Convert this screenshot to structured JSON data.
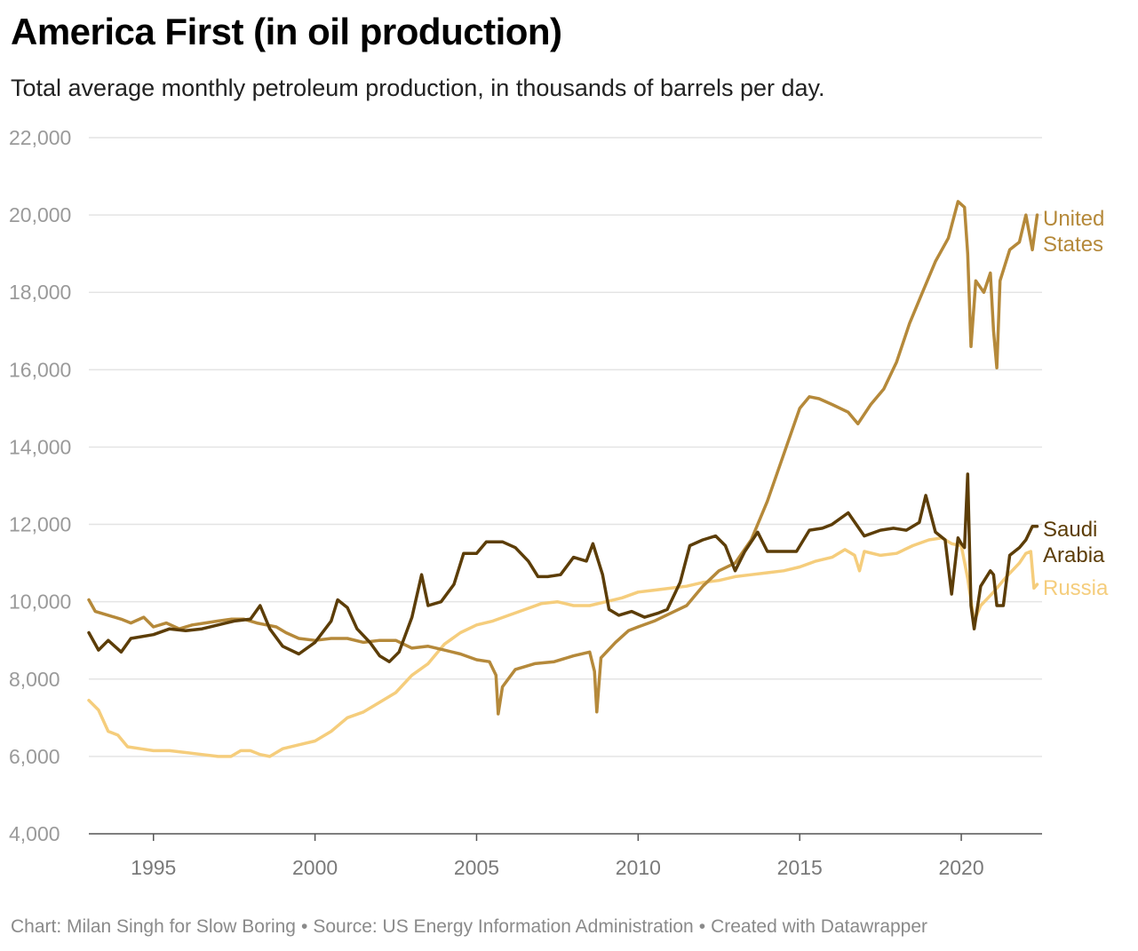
{
  "title": "America First (in oil production)",
  "subtitle": "Total average monthly petroleum production, in thousands of barrels per day.",
  "footer": {
    "chart_credit": "Chart: Milan Singh for Slow Boring",
    "source": "Source: US Energy Information Administration",
    "created": "Created with Datawrapper",
    "separator": "•"
  },
  "colors": {
    "united_states": "#b5893a",
    "saudi_arabia": "#5c3d07",
    "russia": "#f5cd7c",
    "gridline": "#e4e4e4",
    "axis": "#555555",
    "tick_label": "#9a9a9a"
  },
  "chart_data": {
    "type": "line",
    "title": "America First (in oil production)",
    "xlabel": "",
    "ylabel": "",
    "xlim": [
      1993.0,
      2022.5
    ],
    "ylim": [
      4000,
      22000
    ],
    "y_ticks": [
      4000,
      6000,
      8000,
      10000,
      12000,
      14000,
      16000,
      18000,
      20000,
      22000
    ],
    "y_tick_labels": [
      "4,000",
      "6,000",
      "8,000",
      "10,000",
      "12,000",
      "14,000",
      "16,000",
      "18,000",
      "20,000",
      "22,000"
    ],
    "x_ticks": [
      1995,
      2000,
      2005,
      2010,
      2015,
      2020
    ],
    "x_tick_labels": [
      "1995",
      "2000",
      "2005",
      "2010",
      "2015",
      "2020"
    ],
    "grid": true,
    "series": [
      {
        "name": "United States",
        "label_lines": [
          "United",
          "States"
        ],
        "color": "#b5893a",
        "points": [
          [
            1993.0,
            10050
          ],
          [
            1993.2,
            9750
          ],
          [
            1993.6,
            9650
          ],
          [
            1994.0,
            9550
          ],
          [
            1994.3,
            9450
          ],
          [
            1994.7,
            9600
          ],
          [
            1995.0,
            9350
          ],
          [
            1995.4,
            9450
          ],
          [
            1995.8,
            9300
          ],
          [
            1996.2,
            9400
          ],
          [
            1996.6,
            9450
          ],
          [
            1997.0,
            9500
          ],
          [
            1997.4,
            9550
          ],
          [
            1997.8,
            9550
          ],
          [
            1998.2,
            9450
          ],
          [
            1998.5,
            9400
          ],
          [
            1998.8,
            9350
          ],
          [
            1999.1,
            9200
          ],
          [
            1999.5,
            9050
          ],
          [
            2000.0,
            9000
          ],
          [
            2000.5,
            9050
          ],
          [
            2001.0,
            9050
          ],
          [
            2001.5,
            8950
          ],
          [
            2002.0,
            9000
          ],
          [
            2002.5,
            9000
          ],
          [
            2003.0,
            8800
          ],
          [
            2003.5,
            8850
          ],
          [
            2004.0,
            8750
          ],
          [
            2004.5,
            8650
          ],
          [
            2005.0,
            8500
          ],
          [
            2005.4,
            8450
          ],
          [
            2005.6,
            8100
          ],
          [
            2005.67,
            7100
          ],
          [
            2005.8,
            7800
          ],
          [
            2006.2,
            8250
          ],
          [
            2006.8,
            8400
          ],
          [
            2007.4,
            8450
          ],
          [
            2008.0,
            8600
          ],
          [
            2008.5,
            8700
          ],
          [
            2008.65,
            8200
          ],
          [
            2008.72,
            7150
          ],
          [
            2008.85,
            8550
          ],
          [
            2009.3,
            8950
          ],
          [
            2009.7,
            9250
          ],
          [
            2010.0,
            9350
          ],
          [
            2010.5,
            9500
          ],
          [
            2011.0,
            9700
          ],
          [
            2011.5,
            9900
          ],
          [
            2012.0,
            10400
          ],
          [
            2012.5,
            10800
          ],
          [
            2013.0,
            11000
          ],
          [
            2013.5,
            11600
          ],
          [
            2014.0,
            12600
          ],
          [
            2014.5,
            13800
          ],
          [
            2015.0,
            15000
          ],
          [
            2015.3,
            15300
          ],
          [
            2015.6,
            15250
          ],
          [
            2016.0,
            15100
          ],
          [
            2016.5,
            14900
          ],
          [
            2016.8,
            14600
          ],
          [
            2017.2,
            15100
          ],
          [
            2017.6,
            15500
          ],
          [
            2018.0,
            16200
          ],
          [
            2018.4,
            17200
          ],
          [
            2018.8,
            18000
          ],
          [
            2019.2,
            18800
          ],
          [
            2019.6,
            19400
          ],
          [
            2019.9,
            20350
          ],
          [
            2020.1,
            20200
          ],
          [
            2020.2,
            19000
          ],
          [
            2020.3,
            16600
          ],
          [
            2020.45,
            18300
          ],
          [
            2020.7,
            18000
          ],
          [
            2020.9,
            18500
          ],
          [
            2021.0,
            17000
          ],
          [
            2021.1,
            16050
          ],
          [
            2021.2,
            18300
          ],
          [
            2021.5,
            19100
          ],
          [
            2021.8,
            19300
          ],
          [
            2022.0,
            20000
          ],
          [
            2022.2,
            19100
          ],
          [
            2022.35,
            20000
          ]
        ]
      },
      {
        "name": "Saudi Arabia",
        "label_lines": [
          "Saudi",
          "Arabia"
        ],
        "color": "#5c3d07",
        "points": [
          [
            1993.0,
            9200
          ],
          [
            1993.3,
            8750
          ],
          [
            1993.6,
            9000
          ],
          [
            1994.0,
            8700
          ],
          [
            1994.3,
            9050
          ],
          [
            1995.0,
            9150
          ],
          [
            1995.5,
            9300
          ],
          [
            1996.0,
            9250
          ],
          [
            1996.5,
            9300
          ],
          [
            1997.0,
            9400
          ],
          [
            1997.5,
            9500
          ],
          [
            1998.0,
            9550
          ],
          [
            1998.3,
            9900
          ],
          [
            1998.6,
            9300
          ],
          [
            1999.0,
            8850
          ],
          [
            1999.5,
            8650
          ],
          [
            2000.0,
            8950
          ],
          [
            2000.5,
            9500
          ],
          [
            2000.7,
            10050
          ],
          [
            2001.0,
            9850
          ],
          [
            2001.3,
            9300
          ],
          [
            2001.7,
            8950
          ],
          [
            2002.0,
            8600
          ],
          [
            2002.3,
            8450
          ],
          [
            2002.6,
            8700
          ],
          [
            2003.0,
            9600
          ],
          [
            2003.3,
            10700
          ],
          [
            2003.5,
            9900
          ],
          [
            2003.9,
            10000
          ],
          [
            2004.3,
            10450
          ],
          [
            2004.6,
            11250
          ],
          [
            2005.0,
            11250
          ],
          [
            2005.3,
            11550
          ],
          [
            2005.8,
            11550
          ],
          [
            2006.2,
            11400
          ],
          [
            2006.6,
            11050
          ],
          [
            2006.9,
            10650
          ],
          [
            2007.2,
            10650
          ],
          [
            2007.6,
            10700
          ],
          [
            2008.0,
            11150
          ],
          [
            2008.4,
            11050
          ],
          [
            2008.6,
            11500
          ],
          [
            2008.9,
            10700
          ],
          [
            2009.1,
            9800
          ],
          [
            2009.4,
            9650
          ],
          [
            2009.8,
            9750
          ],
          [
            2010.2,
            9600
          ],
          [
            2010.6,
            9700
          ],
          [
            2010.9,
            9800
          ],
          [
            2011.3,
            10500
          ],
          [
            2011.6,
            11450
          ],
          [
            2012.0,
            11600
          ],
          [
            2012.4,
            11700
          ],
          [
            2012.7,
            11450
          ],
          [
            2013.0,
            10800
          ],
          [
            2013.3,
            11300
          ],
          [
            2013.7,
            11800
          ],
          [
            2014.0,
            11300
          ],
          [
            2014.5,
            11300
          ],
          [
            2014.9,
            11300
          ],
          [
            2015.3,
            11850
          ],
          [
            2015.7,
            11900
          ],
          [
            2016.0,
            12000
          ],
          [
            2016.5,
            12300
          ],
          [
            2017.0,
            11700
          ],
          [
            2017.5,
            11850
          ],
          [
            2017.9,
            11900
          ],
          [
            2018.3,
            11850
          ],
          [
            2018.7,
            12050
          ],
          [
            2018.9,
            12750
          ],
          [
            2019.2,
            11800
          ],
          [
            2019.5,
            11600
          ],
          [
            2019.7,
            10200
          ],
          [
            2019.9,
            11650
          ],
          [
            2020.0,
            11500
          ],
          [
            2020.1,
            11400
          ],
          [
            2020.2,
            13300
          ],
          [
            2020.3,
            9900
          ],
          [
            2020.4,
            9300
          ],
          [
            2020.6,
            10400
          ],
          [
            2020.9,
            10800
          ],
          [
            2021.0,
            10700
          ],
          [
            2021.1,
            9900
          ],
          [
            2021.3,
            9900
          ],
          [
            2021.5,
            11200
          ],
          [
            2021.8,
            11400
          ],
          [
            2022.0,
            11600
          ],
          [
            2022.2,
            11950
          ],
          [
            2022.35,
            11950
          ]
        ]
      },
      {
        "name": "Russia",
        "label_lines": [
          "Russia"
        ],
        "color": "#f5cd7c",
        "points": [
          [
            1993.0,
            7450
          ],
          [
            1993.3,
            7200
          ],
          [
            1993.6,
            6650
          ],
          [
            1993.9,
            6550
          ],
          [
            1994.2,
            6250
          ],
          [
            1994.6,
            6200
          ],
          [
            1995.0,
            6150
          ],
          [
            1995.5,
            6150
          ],
          [
            1996.0,
            6100
          ],
          [
            1996.5,
            6050
          ],
          [
            1997.0,
            6000
          ],
          [
            1997.4,
            6000
          ],
          [
            1997.7,
            6150
          ],
          [
            1998.0,
            6150
          ],
          [
            1998.3,
            6050
          ],
          [
            1998.6,
            6000
          ],
          [
            1999.0,
            6200
          ],
          [
            1999.5,
            6300
          ],
          [
            2000.0,
            6400
          ],
          [
            2000.5,
            6650
          ],
          [
            2001.0,
            7000
          ],
          [
            2001.5,
            7150
          ],
          [
            2002.0,
            7400
          ],
          [
            2002.5,
            7650
          ],
          [
            2003.0,
            8100
          ],
          [
            2003.5,
            8400
          ],
          [
            2004.0,
            8900
          ],
          [
            2004.5,
            9200
          ],
          [
            2005.0,
            9400
          ],
          [
            2005.5,
            9500
          ],
          [
            2006.0,
            9650
          ],
          [
            2006.5,
            9800
          ],
          [
            2007.0,
            9950
          ],
          [
            2007.5,
            10000
          ],
          [
            2008.0,
            9900
          ],
          [
            2008.5,
            9900
          ],
          [
            2009.0,
            10000
          ],
          [
            2009.5,
            10100
          ],
          [
            2010.0,
            10250
          ],
          [
            2010.5,
            10300
          ],
          [
            2011.0,
            10350
          ],
          [
            2011.5,
            10400
          ],
          [
            2012.0,
            10500
          ],
          [
            2012.5,
            10550
          ],
          [
            2013.0,
            10650
          ],
          [
            2013.5,
            10700
          ],
          [
            2014.0,
            10750
          ],
          [
            2014.5,
            10800
          ],
          [
            2015.0,
            10900
          ],
          [
            2015.5,
            11050
          ],
          [
            2016.0,
            11150
          ],
          [
            2016.4,
            11350
          ],
          [
            2016.7,
            11200
          ],
          [
            2016.85,
            10800
          ],
          [
            2017.0,
            11300
          ],
          [
            2017.5,
            11200
          ],
          [
            2018.0,
            11250
          ],
          [
            2018.5,
            11450
          ],
          [
            2019.0,
            11600
          ],
          [
            2019.4,
            11650
          ],
          [
            2019.7,
            11500
          ],
          [
            2020.0,
            11450
          ],
          [
            2020.2,
            10600
          ],
          [
            2020.4,
            9500
          ],
          [
            2020.6,
            9900
          ],
          [
            2021.0,
            10250
          ],
          [
            2021.4,
            10650
          ],
          [
            2021.8,
            11000
          ],
          [
            2022.0,
            11250
          ],
          [
            2022.15,
            11300
          ],
          [
            2022.25,
            10350
          ],
          [
            2022.35,
            10450
          ]
        ]
      }
    ]
  }
}
